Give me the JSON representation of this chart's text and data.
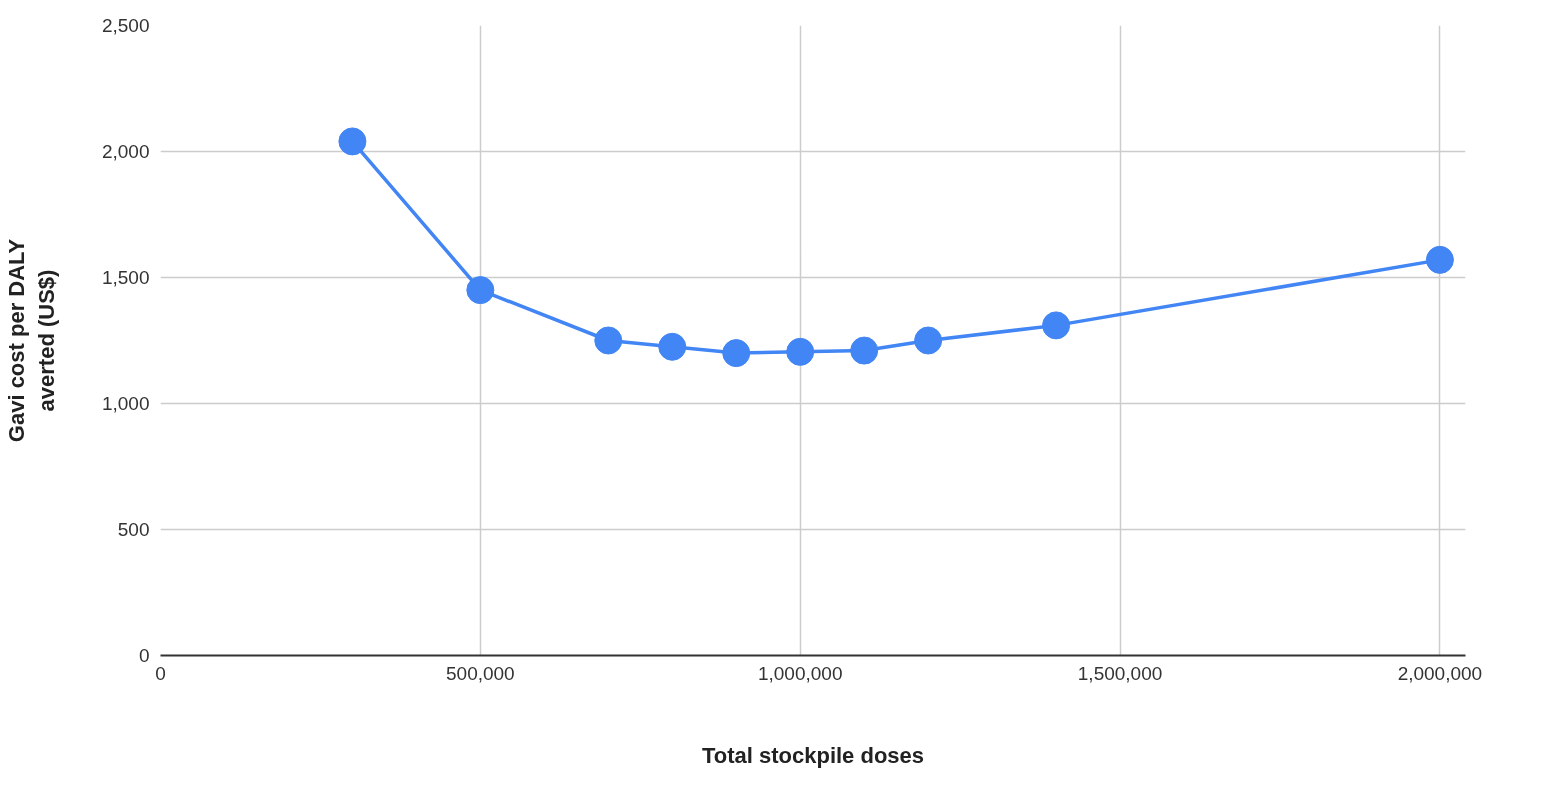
{
  "chart_data": {
    "type": "line",
    "xlabel": "Total stockpile doses",
    "ylabel": "Gavi cost per DALY\naverted (US$)",
    "x": [
      300000,
      500000,
      700000,
      800000,
      900000,
      1000000,
      1100000,
      1200000,
      1400000,
      2000000
    ],
    "series": [
      {
        "color": "#4285f4",
        "values": [
          2040,
          1450,
          1250,
          1225,
          1200,
          1205,
          1210,
          1250,
          1310,
          1570
        ]
      }
    ],
    "xlim": [
      0,
      2040000
    ],
    "ylim": [
      0,
      2500
    ],
    "xticks": [
      {
        "value": 0,
        "label": "0"
      },
      {
        "value": 500000,
        "label": "500,000"
      },
      {
        "value": 1000000,
        "label": "1,000,000"
      },
      {
        "value": 1500000,
        "label": "1,500,000"
      },
      {
        "value": 2000000,
        "label": "2,000,000"
      }
    ],
    "yticks": [
      {
        "value": 0,
        "label": "0"
      },
      {
        "value": 500,
        "label": "500"
      },
      {
        "value": 1000,
        "label": "1,000"
      },
      {
        "value": 1500,
        "label": "1,500"
      },
      {
        "value": 2000,
        "label": "2,000"
      },
      {
        "value": 2500,
        "label": "2,500"
      }
    ],
    "grid": true,
    "marker": "circle",
    "line_style": "solid"
  }
}
